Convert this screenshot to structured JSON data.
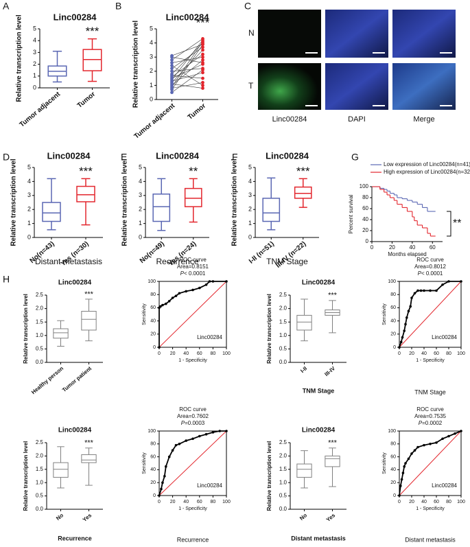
{
  "chart_data": [
    {
      "type": "box",
      "label": "A",
      "title": "Linc00284",
      "ylabel": "Relative transcription level",
      "categories": [
        "Tumor adjacent",
        "Tumor"
      ],
      "colors": [
        "#5a67b3",
        "#e3262d"
      ],
      "boxes": [
        {
          "min": 0.5,
          "q1": 1.0,
          "median": 1.4,
          "q3": 1.85,
          "max": 3.1
        },
        {
          "min": 0.55,
          "q1": 1.45,
          "median": 2.4,
          "q3": 3.25,
          "max": 4.15
        }
      ],
      "ylim": [
        0,
        5
      ],
      "yticks": [
        0,
        1,
        2,
        3,
        4,
        5
      ],
      "annotation": "***"
    },
    {
      "type": "paired",
      "label": "B",
      "title": "Linc00284",
      "ylabel": "Relative transcription level",
      "categories": [
        "Tumor adjacent",
        "Tumor"
      ],
      "colors": [
        "#5a67b3",
        "#e3262d"
      ],
      "values": [
        [
          0.5,
          2.1
        ],
        [
          0.7,
          3.9
        ],
        [
          0.8,
          1.2
        ],
        [
          0.9,
          4.1
        ],
        [
          1.0,
          2.8
        ],
        [
          1.1,
          0.8
        ],
        [
          1.2,
          3.5
        ],
        [
          1.3,
          1.9
        ],
        [
          1.4,
          4.2
        ],
        [
          1.5,
          2.5
        ],
        [
          1.6,
          3.2
        ],
        [
          1.7,
          1.5
        ],
        [
          1.8,
          4.0
        ],
        [
          2.0,
          2.2
        ],
        [
          2.2,
          3.7
        ],
        [
          2.4,
          1.0
        ],
        [
          2.6,
          3.0
        ],
        [
          2.8,
          4.3
        ],
        [
          3.0,
          2.6
        ],
        [
          3.1,
          3.9
        ]
      ],
      "ylim": [
        0,
        5
      ],
      "yticks": [
        0,
        1,
        2,
        3,
        4,
        5
      ],
      "annotation": "***"
    },
    {
      "type": "image",
      "label": "C",
      "row_labels": [
        "N",
        "T"
      ],
      "col_labels": [
        "Linc00284",
        "DAPI",
        "Merge"
      ]
    },
    {
      "type": "box",
      "label": "D",
      "title": "Linc00284",
      "ylabel": "Relative transcription level",
      "xlabel": "Distant metastasis",
      "categories": [
        "No(n=43)",
        "Yes (n=30)"
      ],
      "colors": [
        "#5a67b3",
        "#e3262d"
      ],
      "boxes": [
        {
          "min": 0.55,
          "q1": 1.15,
          "median": 1.75,
          "q3": 2.5,
          "max": 4.2
        },
        {
          "min": 0.9,
          "q1": 2.55,
          "median": 3.05,
          "q3": 3.65,
          "max": 4.2
        }
      ],
      "ylim": [
        0,
        5
      ],
      "yticks": [
        0,
        1,
        2,
        3,
        4,
        5
      ],
      "annotation": "***"
    },
    {
      "type": "box",
      "label": "E",
      "title": "Linc00284",
      "ylabel": "Relative transcription level",
      "xlabel": "Recurrence",
      "categories": [
        "No(n=49)",
        "Yes (n=24)"
      ],
      "colors": [
        "#5a67b3",
        "#e3262d"
      ],
      "boxes": [
        {
          "min": 0.5,
          "q1": 1.15,
          "median": 2.2,
          "q3": 3.1,
          "max": 4.2
        },
        {
          "min": 1.1,
          "q1": 2.2,
          "median": 2.8,
          "q3": 3.5,
          "max": 4.2
        }
      ],
      "ylim": [
        0,
        5
      ],
      "yticks": [
        0,
        1,
        2,
        3,
        4,
        5
      ],
      "annotation": "**"
    },
    {
      "type": "box",
      "label": "F",
      "title": "Linc00284",
      "ylabel": "Relative transcription level",
      "xlabel": "TNM Stage",
      "categories": [
        "I-II (n=51)",
        "III-IV (n=22)"
      ],
      "colors": [
        "#5a67b3",
        "#e3262d"
      ],
      "boxes": [
        {
          "min": 0.55,
          "q1": 1.15,
          "median": 1.75,
          "q3": 2.8,
          "max": 4.25
        },
        {
          "min": 2.15,
          "q1": 2.8,
          "median": 3.15,
          "q3": 3.6,
          "max": 4.2
        }
      ],
      "ylim": [
        0,
        5
      ],
      "yticks": [
        0,
        1,
        2,
        3,
        4,
        5
      ],
      "annotation": "***"
    },
    {
      "type": "km",
      "label": "G",
      "ylabel": "Percent survival",
      "xlabel": "Months elapsed",
      "series": [
        {
          "name": "Low expression of Linc00284(n=41)",
          "color": "#5a67b3",
          "x": [
            0,
            8,
            12,
            15,
            18,
            22,
            25,
            30,
            35,
            40,
            45,
            50,
            55,
            63
          ],
          "values": [
            100,
            97,
            95,
            92,
            88,
            85,
            80,
            78,
            75,
            72,
            68,
            62,
            55,
            55
          ]
        },
        {
          "name": "High expression of Linc00284(n=32)",
          "color": "#e3262d",
          "x": [
            0,
            8,
            12,
            15,
            18,
            22,
            25,
            30,
            35,
            40,
            42,
            45,
            50,
            55,
            58,
            63
          ],
          "values": [
            100,
            95,
            90,
            85,
            80,
            75,
            68,
            62,
            55,
            45,
            38,
            30,
            25,
            15,
            10,
            10
          ]
        }
      ],
      "xlim": [
        0,
        70
      ],
      "xticks": [
        0,
        20,
        40,
        60
      ],
      "ylim": [
        0,
        100
      ],
      "yticks": [
        0,
        20,
        40,
        60,
        80,
        100
      ],
      "annotation": "**"
    },
    {
      "type": "box",
      "label": "H",
      "title": "Linc00284",
      "ylabel": "Relative transcription level",
      "categories": [
        "Healthy person",
        "Tumor patient"
      ],
      "colors": [
        "#808080",
        "#808080"
      ],
      "boxes": [
        {
          "min": 0.6,
          "q1": 0.9,
          "median": 1.1,
          "q3": 1.25,
          "max": 1.55
        },
        {
          "min": 0.8,
          "q1": 1.2,
          "median": 1.6,
          "q3": 1.9,
          "max": 2.35
        }
      ],
      "ylim": [
        0,
        2.5
      ],
      "yticks": [
        {
          "value": 0,
          "label": "0.0"
        },
        0.5,
        {
          "value": 1,
          "label": "1.0"
        },
        1.5,
        {
          "value": 2,
          "label": "2.0"
        },
        2.5
      ],
      "annotation": "***"
    },
    {
      "type": "roc",
      "annotations": [
        "ROC curve",
        "Area=0.8151"
      ],
      "p_label": [
        "P",
        "< 0.0001"
      ],
      "line_label": "Linc00284",
      "xlabel": "1 - Specificity",
      "ylabel": "Sensitivity",
      "x": [
        0,
        0,
        2,
        5,
        10,
        15,
        20,
        25,
        30,
        40,
        50,
        60,
        70,
        75,
        80,
        100
      ],
      "values": [
        0,
        60,
        62,
        64,
        66,
        70,
        75,
        78,
        82,
        85,
        87,
        90,
        95,
        100,
        100,
        100
      ],
      "xlim": [
        0,
        100
      ],
      "xticks": [
        0,
        20,
        40,
        60,
        80,
        100
      ],
      "ylim": [
        0,
        100
      ],
      "yticks": [
        0,
        20,
        40,
        60,
        80,
        100
      ]
    },
    {
      "type": "box",
      "title": "Linc00284",
      "ylabel": "Relative transcription level",
      "xlabel": "TNM Stage",
      "categories": [
        "I-II",
        "III-IV"
      ],
      "colors": [
        "#808080",
        "#808080"
      ],
      "boxes": [
        {
          "min": 0.8,
          "q1": 1.2,
          "median": 1.5,
          "q3": 1.75,
          "max": 2.35
        },
        {
          "min": 1.1,
          "q1": 1.75,
          "median": 1.85,
          "q3": 1.95,
          "max": 2.3
        }
      ],
      "ylim": [
        0,
        2.5
      ],
      "yticks": [
        {
          "value": 0,
          "label": "0.0"
        },
        0.5,
        {
          "value": 1,
          "label": "1.0"
        },
        1.5,
        {
          "value": 2,
          "label": "2.0"
        },
        2.5
      ],
      "annotation": "***"
    },
    {
      "type": "roc",
      "annotations": [
        "ROC curve",
        "Area=0.8012"
      ],
      "p_label": [
        "P",
        "< 0.0001"
      ],
      "line_label": "Linc00284",
      "xlabel": "1 - Specificity",
      "ylabel": "Sensitivity",
      "caption": "TNM Stage",
      "x": [
        0,
        3,
        5,
        8,
        10,
        12,
        15,
        18,
        20,
        25,
        30,
        35,
        40,
        50,
        60,
        70,
        80,
        100
      ],
      "values": [
        0,
        8,
        15,
        25,
        35,
        45,
        55,
        62,
        75,
        82,
        86,
        86,
        86,
        86,
        86,
        95,
        100,
        100
      ],
      "xlim": [
        0,
        100
      ],
      "xticks": [
        0,
        20,
        40,
        60,
        80,
        100
      ],
      "ylim": [
        0,
        100
      ],
      "yticks": [
        0,
        20,
        40,
        60,
        80,
        100
      ]
    },
    {
      "type": "box",
      "title": "Linc00284",
      "ylabel": "Relative transcription level",
      "xlabel": "Recurrence",
      "categories": [
        "No",
        "Yes"
      ],
      "colors": [
        "#808080",
        "#808080"
      ],
      "boxes": [
        {
          "min": 0.8,
          "q1": 1.2,
          "median": 1.5,
          "q3": 1.75,
          "max": 2.35
        },
        {
          "min": 0.9,
          "q1": 1.75,
          "median": 1.85,
          "q3": 2.05,
          "max": 2.3
        }
      ],
      "ylim": [
        0,
        2.5
      ],
      "yticks": [
        {
          "value": 0,
          "label": "0.0"
        },
        0.5,
        {
          "value": 1,
          "label": "1.0"
        },
        1.5,
        {
          "value": 2,
          "label": "2.0"
        },
        2.5
      ],
      "annotation": "***"
    },
    {
      "type": "roc",
      "annotations": [
        "ROC curve",
        "Area=0.7602"
      ],
      "p_label": [
        "P",
        "=0.0003"
      ],
      "line_label": "Linc00284",
      "xlabel": "1 - Specificity",
      "ylabel": "Sensitivity",
      "caption": "Recurrence",
      "x": [
        0,
        3,
        5,
        8,
        10,
        15,
        20,
        25,
        30,
        40,
        50,
        60,
        70,
        80,
        90,
        100
      ],
      "values": [
        0,
        10,
        20,
        30,
        45,
        60,
        70,
        78,
        80,
        85,
        88,
        92,
        95,
        98,
        100,
        100
      ],
      "xlim": [
        0,
        100
      ],
      "xticks": [
        0,
        20,
        40,
        60,
        80,
        100
      ],
      "ylim": [
        0,
        100
      ],
      "yticks": [
        0,
        20,
        40,
        60,
        80,
        100
      ]
    },
    {
      "type": "box",
      "title": "Linc00284",
      "ylabel": "Relative transcription level",
      "xlabel": "Distant metastasis",
      "categories": [
        "No",
        "Yes"
      ],
      "colors": [
        "#808080",
        "#808080"
      ],
      "boxes": [
        {
          "min": 0.8,
          "q1": 1.2,
          "median": 1.5,
          "q3": 1.7,
          "max": 2.2
        },
        {
          "min": 0.85,
          "q1": 1.6,
          "median": 1.9,
          "q3": 2.0,
          "max": 2.3
        }
      ],
      "ylim": [
        0,
        2.5
      ],
      "yticks": [
        {
          "value": 0,
          "label": "0.0"
        },
        0.5,
        {
          "value": 1,
          "label": "1.0"
        },
        1.5,
        {
          "value": 2,
          "label": "2.0"
        },
        2.5
      ],
      "annotation": "***"
    },
    {
      "type": "roc",
      "annotations": [
        "ROC curve",
        "Area=0.7535"
      ],
      "p_label": [
        "P",
        "=0.0002"
      ],
      "line_label": "Linc00284",
      "xlabel": "1 - Specificity",
      "ylabel": "Sensitivity",
      "caption": "Distant metastasis",
      "x": [
        0,
        2,
        4,
        6,
        8,
        10,
        15,
        20,
        25,
        30,
        40,
        50,
        60,
        70,
        80,
        90,
        100
      ],
      "values": [
        0,
        15,
        25,
        35,
        45,
        50,
        57,
        65,
        70,
        75,
        78,
        80,
        82,
        88,
        92,
        96,
        100
      ],
      "xlim": [
        0,
        100
      ],
      "xticks": [
        0,
        20,
        40,
        60,
        80,
        100
      ],
      "ylim": [
        0,
        100
      ],
      "yticks": [
        0,
        20,
        40,
        60,
        80,
        100
      ]
    }
  ]
}
